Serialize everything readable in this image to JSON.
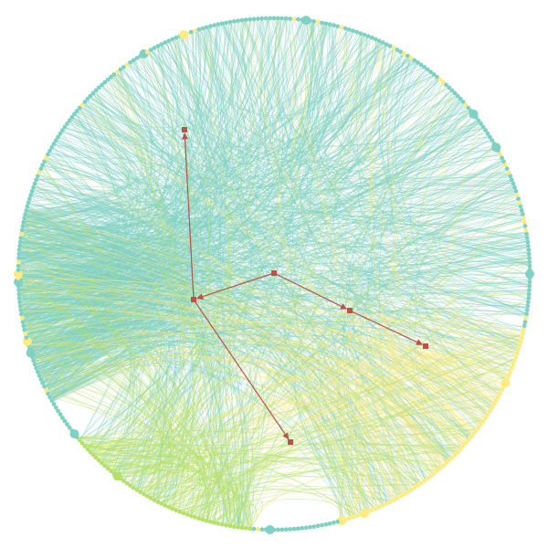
{
  "diagram": {
    "type": "hierarchical-edge-bundling",
    "colors": {
      "teal": "#80d1c3",
      "yellow": "#ffec80",
      "green": "#b5e06b",
      "path": "#b5544b"
    },
    "groups": [
      {
        "name": "teal",
        "color": "#80d1c3",
        "share": 0.72
      },
      {
        "name": "yellow",
        "color": "#ffec80",
        "share": 0.14
      },
      {
        "name": "green",
        "color": "#b5e06b",
        "share": 0.14
      }
    ],
    "path_nodes": [
      {
        "id": "n1"
      },
      {
        "id": "n2"
      },
      {
        "id": "n3"
      },
      {
        "id": "n4"
      },
      {
        "id": "n5"
      },
      {
        "id": "n6"
      }
    ],
    "path_edges": [
      {
        "from": "n2",
        "to": "n1"
      },
      {
        "from": "n3",
        "to": "n2"
      },
      {
        "from": "n3",
        "to": "n4"
      },
      {
        "from": "n4",
        "to": "n5"
      },
      {
        "from": "n2",
        "to": "n6"
      }
    ]
  }
}
